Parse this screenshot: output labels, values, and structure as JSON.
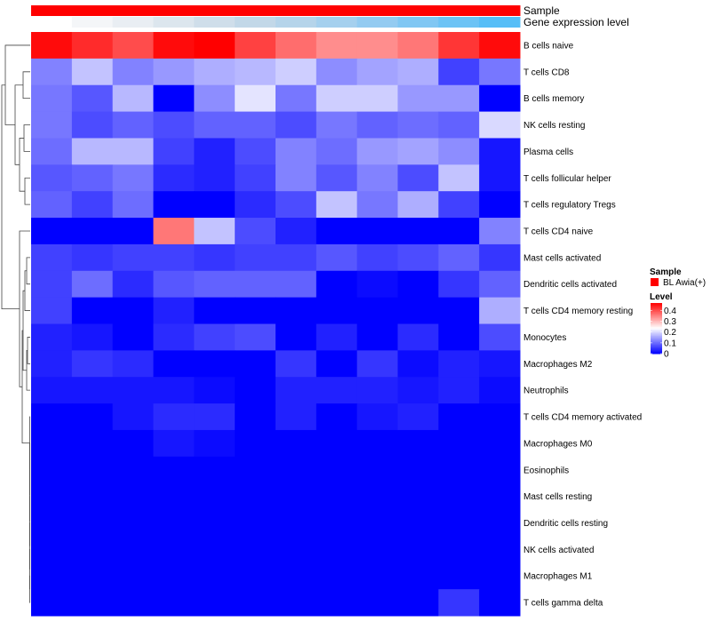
{
  "chart_data": {
    "type": "heatmap",
    "title": "",
    "rows": [
      "B cells naive",
      "T cells CD8",
      "B cells memory",
      "NK cells resting",
      "Plasma cells",
      "T cells follicular helper",
      "T cells regulatory  Tregs",
      "T cells CD4 naive",
      "Mast cells activated",
      "Dendritic cells activated",
      "T cells CD4 memory resting",
      "Monocytes",
      "Macrophages M2",
      "Neutrophils",
      "T cells CD4 memory activated",
      "Macrophages M0",
      "Eosinophils",
      "Mast cells resting",
      "Dendritic cells resting",
      "NK cells activated",
      "Macrophages M1",
      "T cells gamma delta"
    ],
    "columns": 12,
    "values": [
      [
        0.46,
        0.43,
        0.4,
        0.46,
        0.47,
        0.41,
        0.37,
        0.34,
        0.34,
        0.36,
        0.42,
        0.46
      ],
      [
        0.12,
        0.18,
        0.12,
        0.14,
        0.16,
        0.17,
        0.19,
        0.13,
        0.15,
        0.16,
        0.06,
        0.11
      ],
      [
        0.11,
        0.08,
        0.17,
        0.0,
        0.13,
        0.21,
        0.11,
        0.19,
        0.19,
        0.14,
        0.14,
        0.0
      ],
      [
        0.11,
        0.07,
        0.09,
        0.07,
        0.09,
        0.09,
        0.07,
        0.11,
        0.09,
        0.1,
        0.09,
        0.2
      ],
      [
        0.1,
        0.17,
        0.17,
        0.06,
        0.03,
        0.07,
        0.12,
        0.1,
        0.14,
        0.15,
        0.13,
        0.02
      ],
      [
        0.08,
        0.09,
        0.11,
        0.04,
        0.03,
        0.06,
        0.12,
        0.08,
        0.12,
        0.07,
        0.18,
        0.02
      ],
      [
        0.09,
        0.06,
        0.1,
        0.0,
        0.0,
        0.04,
        0.07,
        0.18,
        0.11,
        0.16,
        0.06,
        0.0
      ],
      [
        0.0,
        0.0,
        0.0,
        0.36,
        0.18,
        0.07,
        0.03,
        0.0,
        0.0,
        0.0,
        0.0,
        0.12
      ],
      [
        0.06,
        0.05,
        0.06,
        0.06,
        0.05,
        0.06,
        0.06,
        0.08,
        0.06,
        0.07,
        0.09,
        0.05
      ],
      [
        0.06,
        0.1,
        0.04,
        0.08,
        0.09,
        0.09,
        0.09,
        0.0,
        0.01,
        0.0,
        0.05,
        0.09
      ],
      [
        0.06,
        0.0,
        0.0,
        0.03,
        0.0,
        0.0,
        0.0,
        0.0,
        0.0,
        0.0,
        0.0,
        0.16
      ],
      [
        0.03,
        0.02,
        0.0,
        0.04,
        0.06,
        0.07,
        0.0,
        0.03,
        0.0,
        0.04,
        0.0,
        0.07
      ],
      [
        0.03,
        0.05,
        0.04,
        0.0,
        0.0,
        0.0,
        0.05,
        0.0,
        0.05,
        0.01,
        0.03,
        0.02
      ],
      [
        0.02,
        0.02,
        0.02,
        0.02,
        0.01,
        0.0,
        0.03,
        0.03,
        0.03,
        0.02,
        0.03,
        0.01
      ],
      [
        0.0,
        0.0,
        0.02,
        0.04,
        0.04,
        0.0,
        0.03,
        0.0,
        0.02,
        0.03,
        0.0,
        0.0
      ],
      [
        0.0,
        0.0,
        0.0,
        0.02,
        0.01,
        0.0,
        0.0,
        0.0,
        0.0,
        0.0,
        0.0,
        0.0
      ],
      [
        0.0,
        0.0,
        0.0,
        0.0,
        0.0,
        0.0,
        0.0,
        0.0,
        0.0,
        0.0,
        0.0,
        0.0
      ],
      [
        0.0,
        0.0,
        0.0,
        0.0,
        0.0,
        0.0,
        0.0,
        0.0,
        0.0,
        0.0,
        0.0,
        0.0
      ],
      [
        0.0,
        0.0,
        0.0,
        0.0,
        0.0,
        0.0,
        0.0,
        0.0,
        0.0,
        0.0,
        0.0,
        0.0
      ],
      [
        0.0,
        0.0,
        0.0,
        0.0,
        0.0,
        0.0,
        0.0,
        0.0,
        0.0,
        0.0,
        0.0,
        0.0
      ],
      [
        0.0,
        0.0,
        0.0,
        0.0,
        0.0,
        0.0,
        0.0,
        0.0,
        0.0,
        0.0,
        0.0,
        0.0
      ],
      [
        0.0,
        0.0,
        0.0,
        0.0,
        0.0,
        0.0,
        0.0,
        0.0,
        0.0,
        0.0,
        0.05,
        0.0
      ]
    ],
    "annotations": [
      {
        "label": "Sample",
        "colors": [
          "#ff0000",
          "#ff0000",
          "#ff0000",
          "#ff0000",
          "#ff0000",
          "#ff0000",
          "#ff0000",
          "#ff0000",
          "#ff0000",
          "#ff0000",
          "#ff0000",
          "#ff0000"
        ]
      },
      {
        "label": "Gene expression level",
        "colors": [
          "#ffffff",
          "#f4f6f8",
          "#e9eef3",
          "#dce6ee",
          "#cfdeea",
          "#c2d8e8",
          "#b5d4ea",
          "#a5d0ee",
          "#93cbf1",
          "#80c7f3",
          "#6cc3f5",
          "#56bef7"
        ]
      }
    ],
    "legend": {
      "sample_title": "Sample",
      "sample_items": [
        {
          "label": "BL Awia(+)",
          "color": "#ff0000"
        }
      ],
      "level_title": "Level",
      "level_ticks": [
        {
          "value": 0.4,
          "label": "0.4"
        },
        {
          "value": 0.3,
          "label": "0.3"
        },
        {
          "value": 0.2,
          "label": "0.2"
        },
        {
          "value": 0.1,
          "label": "0.1"
        },
        {
          "value": 0,
          "label": "0"
        }
      ],
      "level_range": [
        0,
        0.47
      ]
    },
    "color_scale": {
      "low": "#0000ff",
      "mid": "#ffffff",
      "high": "#ff0000",
      "domain": [
        0,
        0.235,
        0.47
      ]
    },
    "row_dendrogram": true
  }
}
